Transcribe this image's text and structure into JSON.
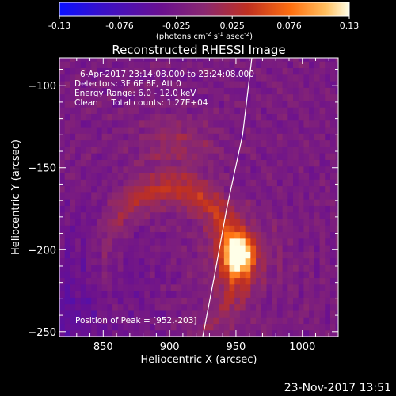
{
  "chart_data": {
    "type": "heatmap",
    "title": "Reconstructed RHESSI Image",
    "xlabel": "Heliocentric X (arcsec)",
    "ylabel": "Heliocentric Y (arcsec)",
    "xlim": [
      817,
      1027
    ],
    "ylim": [
      -253,
      -83
    ],
    "xticks": [
      850,
      900,
      950,
      1000
    ],
    "yticks": [
      -100,
      -150,
      -200,
      -250
    ],
    "grid": false,
    "colorbar": {
      "position": "top",
      "range": [
        -0.13,
        0.13
      ],
      "tick_values": [
        -0.13,
        -0.076,
        -0.025,
        0.025,
        0.076,
        0.13
      ],
      "tick_labels": [
        "-0.13",
        "-0.076",
        "-0.025",
        "0.025",
        "0.076",
        "0.13"
      ],
      "units_prefix": "(photons cm",
      "units_exp1": "-2",
      "units_mid": " s",
      "units_exp2": "-1",
      "units_mid2": " asec",
      "units_exp3": "-2",
      "units_suffix": ")",
      "colors": [
        "#0a10ff",
        "#3a10c8",
        "#6a1090",
        "#8a2870",
        "#c03020",
        "#ff7010",
        "#ffc060",
        "#ffffe8"
      ]
    },
    "annotations": {
      "time_range": "6-Apr-2017 23:14:08.000 to 23:24:08.000",
      "detectors": "Detectors: 3F 6F 8F, Att 0",
      "energy": "Energy Range: 6.0 - 12.0 keV",
      "clean": "Clean     Total counts: 1.27E+04",
      "peak": "Position of Peak = [952,-203]"
    },
    "peak": {
      "x": 952,
      "y": -203,
      "value": 0.13
    },
    "limb": {
      "points": [
        [
          962,
          -83
        ],
        [
          955,
          -130
        ],
        [
          943,
          -175
        ],
        [
          934,
          -215
        ],
        [
          925,
          -253
        ]
      ]
    },
    "features": {
      "background_value": -0.02,
      "ring_center": [
        900,
        -210
      ],
      "ring_radius": 50,
      "ring_value": 0.04,
      "pixel_size_arcsec": 4
    },
    "footer_date": "23-Nov-2017 13:51"
  }
}
